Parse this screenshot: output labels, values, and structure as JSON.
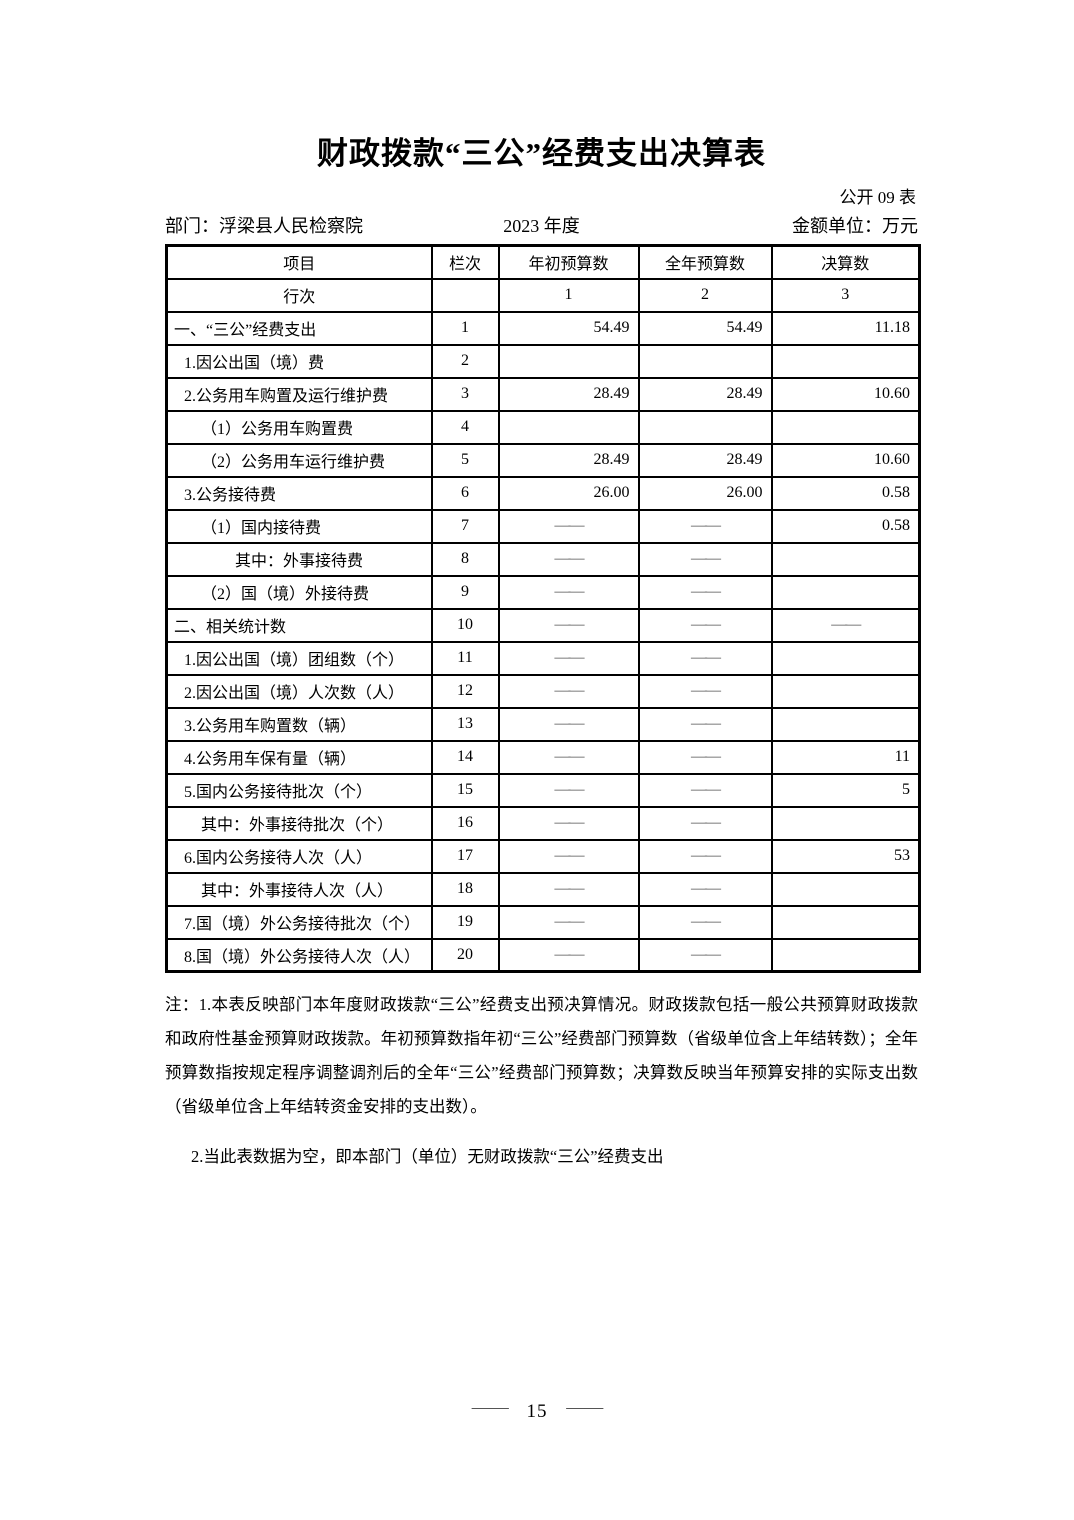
{
  "page": {
    "title": "财政拨款“三公”经费支出决算表",
    "table_code": "公开 09 表",
    "department": "部门：浮梁县人民检察院",
    "year": "2023 年度",
    "unit": "金额单位：万元"
  },
  "table": {
    "columns": [
      "项目",
      "栏次",
      "年初预算数",
      "全年预算数",
      "决算数"
    ],
    "subheader": {
      "label": "行次",
      "lane": "",
      "c1": "1",
      "c2": "2",
      "c3": "3"
    },
    "dash_glyph": "——",
    "rows": [
      {
        "label": "一、“三公”经费支出",
        "indent": 0,
        "line": "1",
        "c1": "54.49",
        "c2": "54.49",
        "c3": "11.18"
      },
      {
        "label": "1.因公出国（境）费",
        "indent": 1,
        "line": "2",
        "c1": "",
        "c2": "",
        "c3": ""
      },
      {
        "label": "2.公务用车购置及运行维护费",
        "indent": 1,
        "line": "3",
        "c1": "28.49",
        "c2": "28.49",
        "c3": "10.60"
      },
      {
        "label": "（1）公务用车购置费",
        "indent": 2,
        "line": "4",
        "c1": "",
        "c2": "",
        "c3": ""
      },
      {
        "label": "（2）公务用车运行维护费",
        "indent": 2,
        "line": "5",
        "c1": "28.49",
        "c2": "28.49",
        "c3": "10.60"
      },
      {
        "label": "3.公务接待费",
        "indent": 1,
        "line": "6",
        "c1": "26.00",
        "c2": "26.00",
        "c3": "0.58"
      },
      {
        "label": "（1）国内接待费",
        "indent": 2,
        "line": "7",
        "c1": "——",
        "c2": "——",
        "c3": "0.58"
      },
      {
        "label": "其中：外事接待费",
        "indent": 3,
        "line": "8",
        "c1": "——",
        "c2": "——",
        "c3": ""
      },
      {
        "label": "（2）国（境）外接待费",
        "indent": 2,
        "line": "9",
        "c1": "——",
        "c2": "——",
        "c3": ""
      },
      {
        "label": "二、相关统计数",
        "indent": 0,
        "line": "10",
        "c1": "——",
        "c2": "——",
        "c3": "——"
      },
      {
        "label": "1.因公出国（境）团组数（个）",
        "indent": 1,
        "line": "11",
        "c1": "——",
        "c2": "——",
        "c3": ""
      },
      {
        "label": "2.因公出国（境）人次数（人）",
        "indent": 1,
        "line": "12",
        "c1": "——",
        "c2": "——",
        "c3": ""
      },
      {
        "label": "3.公务用车购置数（辆）",
        "indent": 1,
        "line": "13",
        "c1": "——",
        "c2": "——",
        "c3": ""
      },
      {
        "label": "4.公务用车保有量（辆）",
        "indent": 1,
        "line": "14",
        "c1": "——",
        "c2": "——",
        "c3": "11"
      },
      {
        "label": "5.国内公务接待批次（个）",
        "indent": 1,
        "line": "15",
        "c1": "——",
        "c2": "——",
        "c3": "5"
      },
      {
        "label": "其中：外事接待批次（个）",
        "indent": 2,
        "line": "16",
        "c1": "——",
        "c2": "——",
        "c3": ""
      },
      {
        "label": "6.国内公务接待人次（人）",
        "indent": 1,
        "line": "17",
        "c1": "——",
        "c2": "——",
        "c3": "53"
      },
      {
        "label": "其中：外事接待人次（人）",
        "indent": 2,
        "line": "18",
        "c1": "——",
        "c2": "——",
        "c3": ""
      },
      {
        "label": "7.国（境）外公务接待批次（个）",
        "indent": 1,
        "line": "19",
        "c1": "——",
        "c2": "——",
        "c3": ""
      },
      {
        "label": "8.国（境）外公务接待人次（人）",
        "indent": 1,
        "line": "20",
        "c1": "——",
        "c2": "——",
        "c3": ""
      }
    ]
  },
  "notes": [
    "注：1.本表反映部门本年度财政拨款“三公”经费支出预决算情况。财政拨款包括一般公共预算财政拨款和政府性基金预算财政拨款。年初预算数指年初“三公”经费部门预算数（省级单位含上年结转数）；全年预算数指按规定程序调整调剂后的全年“三公”经费部门预算数；决算数反映当年预算安排的实际支出数（省级单位含上年结转资金安排的支出数）。",
    "2.当此表数据为空，即本部门（单位）无财政拨款“三公”经费支出"
  ],
  "footer": {
    "dash": "——",
    "page": "15"
  }
}
